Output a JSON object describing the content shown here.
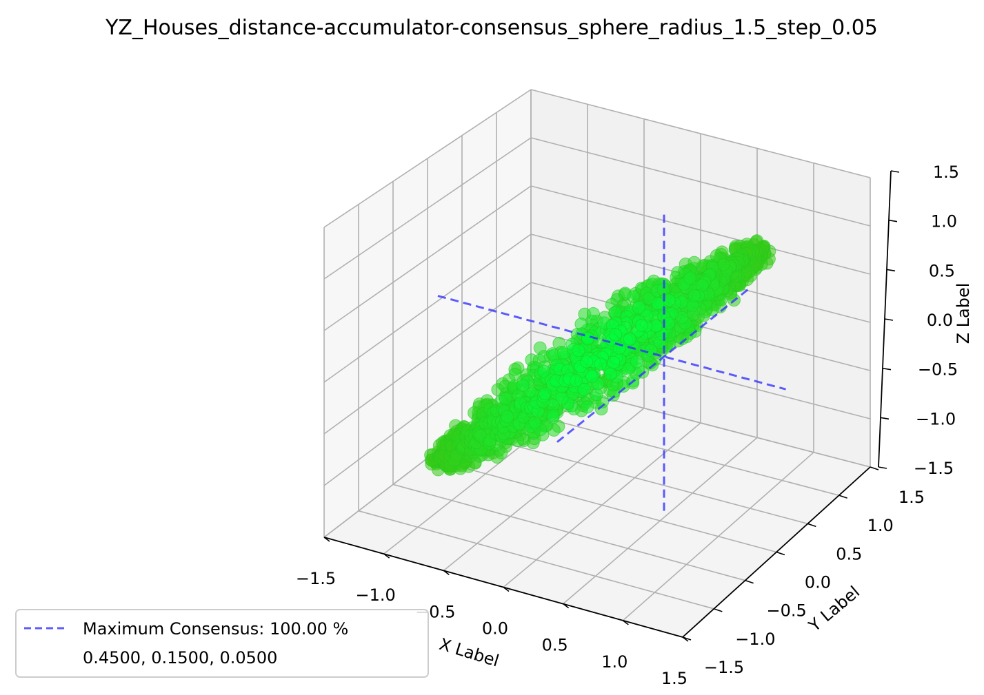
{
  "chart_data": {
    "type": "scatter",
    "title": "YZ_Houses_distance-accumulator-consensus_sphere_radius_1.5_step_0.05",
    "xlabel": "X Label",
    "ylabel": "Y Label",
    "zlabel": "Z Label",
    "xlim": [
      -1.5,
      1.5
    ],
    "ylim": [
      -1.5,
      1.5
    ],
    "zlim": [
      -1.5,
      1.5
    ],
    "x_ticks": [
      "−1.5",
      "−1.0",
      "−0.5",
      "0.0",
      "0.5",
      "1.0",
      "1.5"
    ],
    "y_ticks": [
      "−1.5",
      "−1.0",
      "−0.5",
      "0.0",
      "0.5",
      "1.0",
      "1.5"
    ],
    "z_ticks": [
      "−1.5",
      "−1.0",
      "−0.5",
      "0.0",
      "0.5",
      "1.0",
      "1.5"
    ],
    "grid": true,
    "point_color": "#22dd22",
    "point_center_color": "#00ff40",
    "line_color": "#3333ff",
    "cluster": {
      "description": "elongated cloud of points along the main diagonal",
      "ends": [
        [
          -0.9,
          -0.9,
          -0.9
        ],
        [
          0.9,
          0.9,
          0.9
        ]
      ]
    },
    "consensus_point": [
      0.45,
      0.15,
      0.05
    ],
    "consensus_lines": [
      {
        "axis": "x",
        "from": [
          -1.5,
          0.15,
          0.05
        ],
        "to": [
          1.5,
          0.15,
          0.05
        ]
      },
      {
        "axis": "y",
        "from": [
          0.45,
          -1.5,
          0.05
        ],
        "to": [
          0.45,
          1.5,
          0.05
        ]
      },
      {
        "axis": "z",
        "from": [
          0.45,
          0.15,
          -1.5
        ],
        "to": [
          0.45,
          0.15,
          1.5
        ]
      }
    ],
    "legend": {
      "position": "lower-left",
      "label": "Maximum Consensus: 100.00 %",
      "sublabel": "0.4500, 0.1500, 0.0500"
    }
  }
}
